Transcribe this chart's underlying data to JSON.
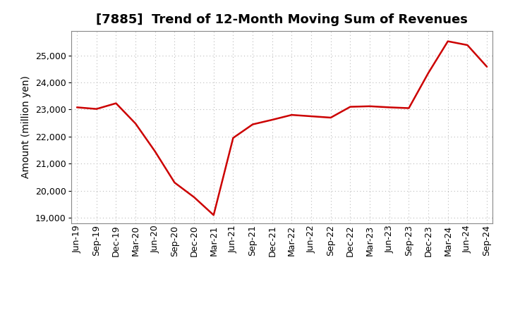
{
  "title": "[7885]  Trend of 12-Month Moving Sum of Revenues",
  "ylabel": "Amount (million yen)",
  "line_color": "#cc0000",
  "background_color": "#ffffff",
  "plot_bg_color": "#ffffff",
  "grid_color": "#bbbbbb",
  "title_fontsize": 13,
  "label_fontsize": 10,
  "tick_fontsize": 9,
  "dates": [
    "Jun-19",
    "Sep-19",
    "Dec-19",
    "Mar-20",
    "Jun-20",
    "Sep-20",
    "Dec-20",
    "Mar-21",
    "Jun-21",
    "Sep-21",
    "Dec-21",
    "Mar-22",
    "Jun-22",
    "Sep-22",
    "Dec-22",
    "Mar-23",
    "Jun-23",
    "Sep-23",
    "Dec-23",
    "Mar-24",
    "Jun-24",
    "Sep-24"
  ],
  "values": [
    23080,
    23020,
    23230,
    22480,
    21450,
    20300,
    19760,
    19100,
    21950,
    22450,
    22620,
    22800,
    22750,
    22700,
    23100,
    23120,
    23080,
    23050,
    24350,
    25520,
    25380,
    24580
  ],
  "ylim": [
    18800,
    25900
  ],
  "yticks": [
    19000,
    20000,
    21000,
    22000,
    23000,
    24000,
    25000
  ],
  "figsize": [
    7.2,
    4.4
  ],
  "dpi": 100
}
